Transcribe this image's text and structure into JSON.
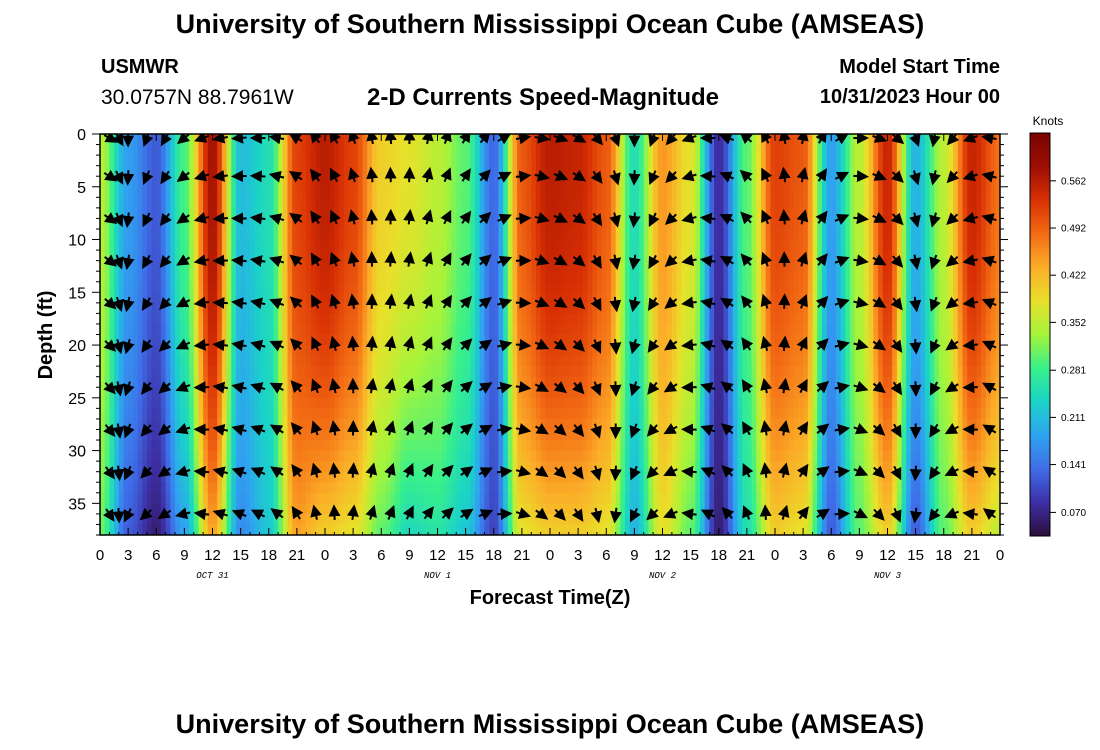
{
  "header": {
    "title": "University of Southern Mississippi Ocean Cube (AMSEAS)",
    "station": "USMWR",
    "coordinates": "30.0757N  88.7961W",
    "plot_title": "2-D Currents Speed-Magnitude",
    "model_start_label": "Model Start Time",
    "model_start_value": "10/31/2023 Hour 00"
  },
  "footer": {
    "title": "University of Southern Mississippi Ocean Cube (AMSEAS)"
  },
  "chart_data": {
    "type": "heatmap",
    "title": "2-D Currents Speed-Magnitude",
    "xlabel": "Forecast Time(Z)",
    "ylabel": "Depth (ft)",
    "xlim": [
      0,
      96
    ],
    "ylim": [
      38,
      0
    ],
    "x_ticks": [
      0,
      3,
      6,
      9,
      12,
      15,
      18,
      21,
      24,
      27,
      30,
      33,
      36,
      39,
      42,
      45,
      48,
      51,
      54,
      57,
      60,
      63,
      66,
      69,
      72,
      75,
      78,
      81,
      84,
      87,
      90,
      93,
      96
    ],
    "x_tick_labels": [
      "0",
      "3",
      "6",
      "9",
      "12",
      "15",
      "18",
      "21",
      "0",
      "3",
      "6",
      "9",
      "12",
      "15",
      "18",
      "21",
      "0",
      "3",
      "6",
      "9",
      "12",
      "15",
      "18",
      "21",
      "0",
      "3",
      "6",
      "9",
      "12",
      "15",
      "18",
      "21",
      "0"
    ],
    "day_labels": [
      {
        "hour": 12,
        "label": "OCT 31"
      },
      {
        "hour": 36,
        "label": "NOV 1"
      },
      {
        "hour": 60,
        "label": "NOV 2"
      },
      {
        "hour": 84,
        "label": "NOV 3"
      }
    ],
    "y_ticks": [
      0,
      5,
      10,
      15,
      20,
      25,
      30,
      35
    ],
    "y_tick_labels": [
      "0",
      "5",
      "10",
      "15",
      "20",
      "25",
      "30",
      "35"
    ],
    "colorbar": {
      "label": "Knots",
      "min": 0.035,
      "max": 0.633,
      "ticks": [
        0.07,
        0.141,
        0.211,
        0.281,
        0.352,
        0.422,
        0.492,
        0.562
      ],
      "tick_labels": [
        "0.070",
        "0.141",
        "0.211",
        "0.281",
        "0.352",
        "0.422",
        "0.492",
        "0.562"
      ],
      "colors": [
        "#2b0d3a",
        "#3d2fa5",
        "#3f6de8",
        "#2fa4f0",
        "#1ad3c7",
        "#39f08a",
        "#a5f43a",
        "#e9e02a",
        "#fbad28",
        "#f36b14",
        "#d83004",
        "#9e0e02",
        "#7a0403"
      ]
    },
    "speed_profile": {
      "hours": [
        0,
        3,
        6,
        9,
        12,
        15,
        18,
        21,
        24,
        27,
        30,
        33,
        36,
        39,
        42,
        45,
        48,
        51,
        54,
        57,
        60,
        63,
        66,
        69,
        72,
        75,
        78,
        81,
        84,
        87,
        90,
        93,
        96
      ],
      "surface_speed": [
        0.35,
        0.18,
        0.12,
        0.29,
        0.58,
        0.21,
        0.25,
        0.52,
        0.56,
        0.52,
        0.4,
        0.38,
        0.35,
        0.3,
        0.13,
        0.5,
        0.56,
        0.55,
        0.5,
        0.25,
        0.45,
        0.38,
        0.08,
        0.3,
        0.52,
        0.5,
        0.18,
        0.35,
        0.55,
        0.2,
        0.35,
        0.55,
        0.48
      ],
      "bottom_speed": [
        0.31,
        0.12,
        0.06,
        0.18,
        0.44,
        0.16,
        0.22,
        0.44,
        0.4,
        0.38,
        0.3,
        0.24,
        0.26,
        0.22,
        0.1,
        0.38,
        0.4,
        0.4,
        0.38,
        0.2,
        0.38,
        0.3,
        0.06,
        0.25,
        0.4,
        0.38,
        0.12,
        0.3,
        0.4,
        0.12,
        0.3,
        0.4,
        0.35
      ]
    },
    "vector_depths": [
      0,
      4,
      8,
      12,
      16,
      20,
      24,
      28,
      32,
      36
    ],
    "vector_hours": [
      1,
      2,
      3,
      5,
      7,
      9,
      11,
      13,
      15,
      17,
      19,
      21,
      23,
      25,
      27,
      29,
      31,
      33,
      35,
      37,
      39,
      41,
      43,
      45,
      47,
      49,
      51,
      53,
      55,
      57,
      59,
      61,
      63,
      65,
      67,
      69,
      71,
      73,
      75,
      77,
      79,
      81,
      83,
      85,
      87,
      89,
      91,
      93,
      95
    ],
    "vector_directions_deg": [
      120,
      150,
      180,
      200,
      210,
      230,
      250,
      260,
      265,
      270,
      280,
      300,
      320,
      330,
      340,
      350,
      355,
      360,
      10,
      20,
      30,
      40,
      60,
      80,
      100,
      110,
      120,
      140,
      160,
      180,
      200,
      220,
      250,
      270,
      290,
      310,
      330,
      350,
      10,
      30,
      60,
      90,
      110,
      130,
      160,
      190,
      220,
      250,
      280
    ]
  }
}
